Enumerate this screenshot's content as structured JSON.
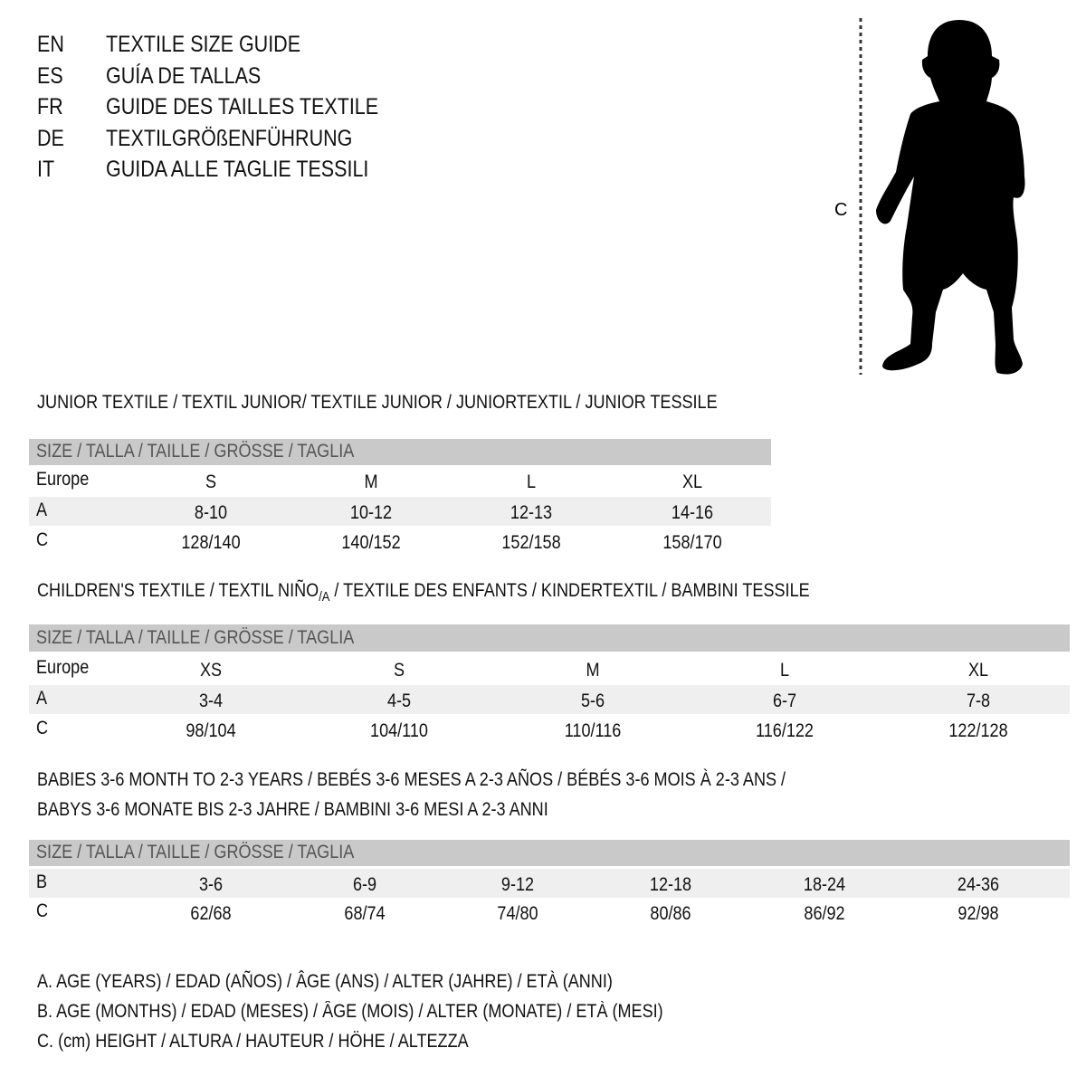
{
  "titles": [
    {
      "lang": "EN",
      "text": "TEXTILE SIZE GUIDE"
    },
    {
      "lang": "ES",
      "text": "GUÍA DE TALLAS"
    },
    {
      "lang": "FR",
      "text": "GUIDE DES TAILLES TEXTILE"
    },
    {
      "lang": "DE",
      "text": "TEXTILGRÖßENFÜHRUNG"
    },
    {
      "lang": "IT",
      "text": "GUIDA ALLE TAGLIE TESSILI"
    }
  ],
  "figure": {
    "label": "C",
    "icon": "child-silhouette"
  },
  "size_header": "SIZE / TALLA / TAILLE / GRÖSSE / TAGLIA",
  "junior": {
    "title": "JUNIOR TEXTILE / TEXTIL JUNIOR/ TEXTILE JUNIOR / JUNIORTEXTIL / JUNIOR TESSILE",
    "rows": [
      {
        "label": "Europe",
        "values": [
          "S",
          "M",
          "L",
          "XL"
        ]
      },
      {
        "label": "A",
        "values": [
          "8-10",
          "10-12",
          "12-13",
          "14-16"
        ]
      },
      {
        "label": "C",
        "values": [
          "128/140",
          "140/152",
          "152/158",
          "158/170"
        ]
      }
    ]
  },
  "children": {
    "title_a": "CHILDREN'S TEXTILE / TEXTIL NIÑO",
    "title_sub": "/A",
    "title_b": " / TEXTILE DES ENFANTS / KINDERTEXTIL / BAMBINI TESSILE",
    "rows": [
      {
        "label": "Europe",
        "values": [
          "XS",
          "S",
          "M",
          "L",
          "XL"
        ]
      },
      {
        "label": "A",
        "values": [
          "3-4",
          "4-5",
          "5-6",
          "6-7",
          "7-8"
        ]
      },
      {
        "label": "C",
        "values": [
          "98/104",
          "104/110",
          "110/116",
          "116/122",
          "122/128"
        ]
      }
    ]
  },
  "babies": {
    "title_1": "BABIES 3-6 MONTH TO 2-3 YEARS / BEBÉS 3-6 MESES A 2-3 AÑOS / BÉBÉS 3-6 MOIS À 2-3 ANS /",
    "title_2": "BABYS 3-6 MONATE BIS 2-3 JAHRE / BAMBINI 3-6 MESI A 2-3 ANNI",
    "rows": [
      {
        "label": "B",
        "values": [
          "3-6",
          "6-9",
          "9-12",
          "12-18",
          "18-24",
          "24-36"
        ]
      },
      {
        "label": "C",
        "values": [
          "62/68",
          "68/74",
          "74/80",
          "80/86",
          "86/92",
          "92/98"
        ]
      }
    ]
  },
  "legend": [
    "A. AGE (YEARS) / EDAD (AÑOS) / ÂGE (ANS) / ALTER (JAHRE) / ETÀ (ANNI)",
    "B. AGE (MONTHS) / EDAD (MESES) / ÂGE (MOIS) / ALTER (MONATE) / ETÀ (MESI)",
    "C. (cm) HEIGHT / ALTURA / HAUTEUR / HÖHE / ALTEZZA"
  ]
}
